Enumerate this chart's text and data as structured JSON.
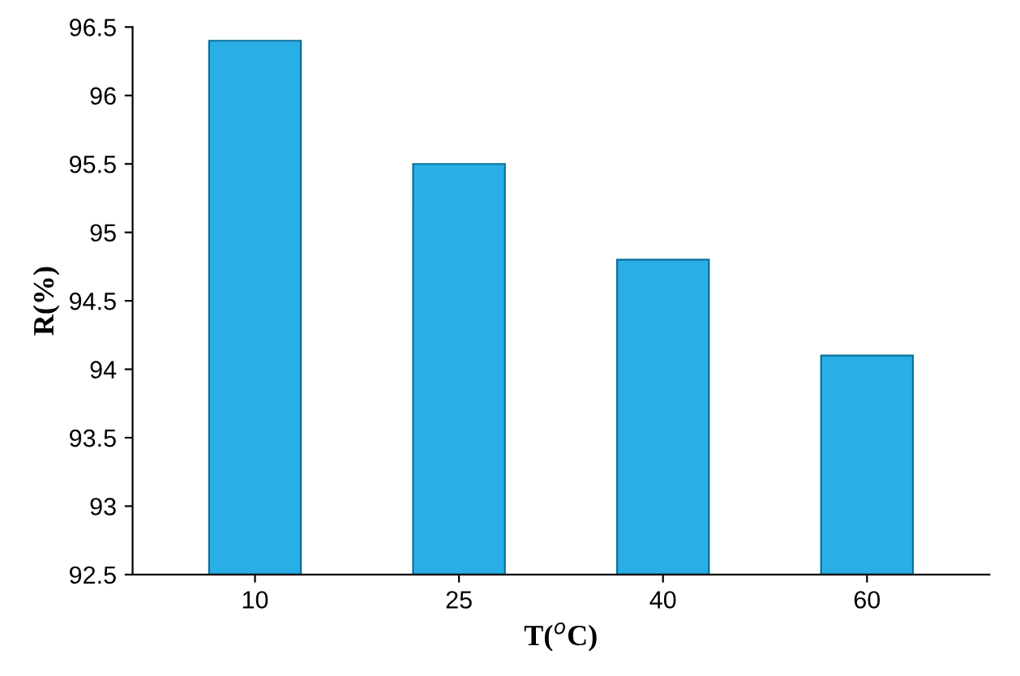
{
  "chart_data": {
    "type": "bar",
    "xlabel": "T($^{o}$C)",
    "ylabel": "R(%)",
    "categories": [
      "10",
      "25",
      "40",
      "60"
    ],
    "values": [
      96.4,
      95.5,
      94.8,
      94.1
    ],
    "color": "#2aaee6",
    "ylim": [
      92.5,
      96.5
    ],
    "yticks": [
      92.5,
      93,
      93.5,
      94,
      94.5,
      95,
      95.5,
      96,
      96.5
    ],
    "grid": false
  }
}
